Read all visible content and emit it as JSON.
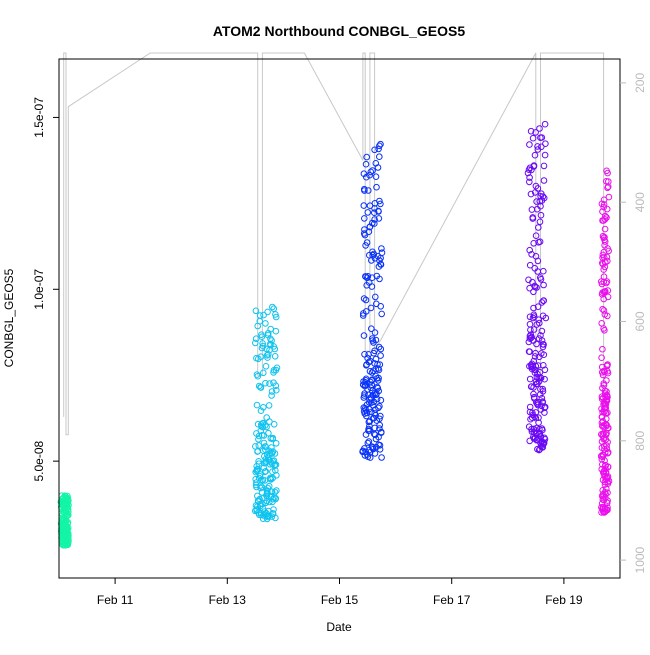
{
  "chart_data": {
    "type": "scatter",
    "title": "ATOM2 Northbound CONBGL_GEOS5",
    "xlabel": "Date",
    "ylabel": "CONBGL_GEOS5",
    "xlim": [
      "2016-02-10",
      "2016-02-20"
    ],
    "ylim": [
      1.6e-08,
      1.67e-07
    ],
    "y2lim": [
      1030,
      160
    ],
    "x_ticks": [
      {
        "date": "2016-02-11",
        "label": "Feb 11"
      },
      {
        "date": "2016-02-13",
        "label": "Feb 13"
      },
      {
        "date": "2016-02-15",
        "label": "Feb 15"
      },
      {
        "date": "2016-02-17",
        "label": "Feb 17"
      },
      {
        "date": "2016-02-19",
        "label": "Feb 19"
      }
    ],
    "y_ticks": [
      {
        "value": 5e-08,
        "label": "5.0e-08"
      },
      {
        "value": 1e-07,
        "label": "1.0e-07"
      },
      {
        "value": 1.5e-07,
        "label": "1.5e-07"
      }
    ],
    "y2_ticks": [
      {
        "value": 200,
        "label": "200"
      },
      {
        "value": 400,
        "label": "400"
      },
      {
        "value": 600,
        "label": "600"
      },
      {
        "value": 800,
        "label": "800"
      },
      {
        "value": 1000,
        "label": "1000"
      }
    ],
    "grid": false,
    "colors": {
      "altitude_line": "#c8c8c8",
      "axis": "#000000",
      "secondary_axis": "#bbbbbb"
    },
    "series": [
      {
        "date_start": "2016-02-10T01:00",
        "date_end": "2016-02-10T04:00",
        "y_min": 2.55e-08,
        "y_max": 4e-08,
        "color": "#14f5a6"
      },
      {
        "date_start": "2016-02-13T12:00",
        "date_end": "2016-02-13T21:00",
        "y_min": 3.3e-08,
        "y_max": 9.5e-08,
        "color": "#0fc3ef"
      },
      {
        "date_start": "2016-02-15T10:00",
        "date_end": "2016-02-15T18:00",
        "y_min": 5.1e-08,
        "y_max": 1.45e-07,
        "color": "#0a32f7"
      },
      {
        "date_start": "2016-02-18T09:00",
        "date_end": "2016-02-18T16:00",
        "y_min": 5.3e-08,
        "y_max": 1.5e-07,
        "color": "#6a0af5"
      },
      {
        "date_start": "2016-02-19T16:00",
        "date_end": "2016-02-19T19:00",
        "y_min": 3.5e-08,
        "y_max": 1.35e-07,
        "color": "#ea10ec"
      }
    ],
    "pressure_profile": [
      {
        "date": "2016-02-10T02:00",
        "pressure": 760
      },
      {
        "date": "2016-02-10T02:00",
        "pressure": 150
      },
      {
        "date": "2016-02-10T03:00",
        "pressure": 150
      },
      {
        "date": "2016-02-10T03:00",
        "pressure": 790
      },
      {
        "date": "2016-02-10T04:00",
        "pressure": 790
      },
      {
        "date": "2016-02-10T04:00",
        "pressure": 240
      },
      {
        "date": "2016-02-11T15:00",
        "pressure": 150
      },
      {
        "date": "2016-02-13T13:00",
        "pressure": 150
      },
      {
        "date": "2016-02-13T13:00",
        "pressure": 690
      },
      {
        "date": "2016-02-13T15:00",
        "pressure": 690
      },
      {
        "date": "2016-02-13T15:00",
        "pressure": 150
      },
      {
        "date": "2016-02-14T09:00",
        "pressure": 150
      },
      {
        "date": "2016-02-15T10:00",
        "pressure": 330
      },
      {
        "date": "2016-02-15T10:00",
        "pressure": 150
      },
      {
        "date": "2016-02-15T11:00",
        "pressure": 150
      },
      {
        "date": "2016-02-15T11:00",
        "pressure": 650
      },
      {
        "date": "2016-02-15T13:00",
        "pressure": 650
      },
      {
        "date": "2016-02-15T13:00",
        "pressure": 150
      },
      {
        "date": "2016-02-15T15:00",
        "pressure": 150
      },
      {
        "date": "2016-02-15T15:00",
        "pressure": 650
      },
      {
        "date": "2016-02-18T12:00",
        "pressure": 150
      },
      {
        "date": "2016-02-18T12:00",
        "pressure": 700
      },
      {
        "date": "2016-02-18T14:00",
        "pressure": 700
      },
      {
        "date": "2016-02-18T14:00",
        "pressure": 150
      },
      {
        "date": "2016-02-19T17:00",
        "pressure": 150
      },
      {
        "date": "2016-02-19T17:00",
        "pressure": 760
      }
    ]
  }
}
